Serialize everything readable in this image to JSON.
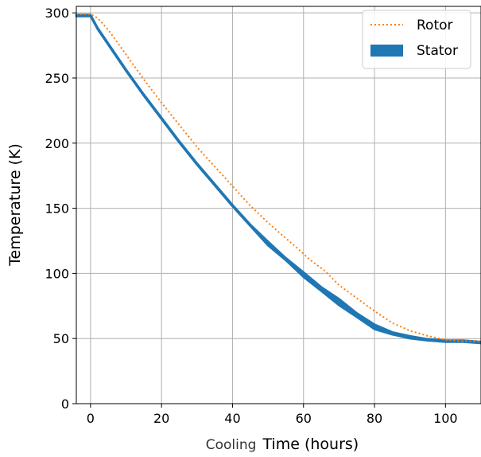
{
  "chart_data": {
    "type": "line",
    "title": "",
    "xlabel_parts": [
      "Cooling",
      "Time (hours)"
    ],
    "ylabel": "Temperature (K)",
    "xlim": [
      -4,
      110
    ],
    "ylim": [
      0,
      305
    ],
    "xticks": [
      0,
      20,
      40,
      60,
      80,
      100
    ],
    "yticks": [
      0,
      50,
      100,
      150,
      200,
      250,
      300
    ],
    "grid": true,
    "legend_position": "top-right",
    "series": [
      {
        "name": "Rotor",
        "style": "dotted",
        "color": "#ff7f0e",
        "x": [
          -4,
          0,
          2,
          5,
          10,
          15,
          20,
          25,
          30,
          35,
          40,
          45,
          50,
          55,
          58,
          62,
          66,
          70,
          75,
          80,
          85,
          90,
          95,
          100,
          105,
          110
        ],
        "y": [
          299,
          299,
          296,
          287,
          268,
          249,
          231,
          214,
          197,
          182,
          167,
          152,
          139,
          127,
          120,
          110,
          102,
          91,
          81,
          71,
          62,
          56,
          52,
          49,
          48,
          48
        ]
      },
      {
        "name": "Stator",
        "style": "band",
        "color": "#1f77b4",
        "x": [
          -4,
          0,
          2,
          5,
          10,
          15,
          20,
          25,
          30,
          35,
          40,
          45,
          50,
          55,
          60,
          65,
          70,
          75,
          80,
          85,
          90,
          95,
          100,
          105,
          110
        ],
        "y": [
          298,
          298,
          288,
          276,
          256,
          237,
          219,
          201,
          184,
          168,
          152,
          137,
          123,
          111,
          99,
          88,
          78,
          68,
          59,
          54,
          51,
          49,
          48,
          48,
          47
        ],
        "band_width": [
          2,
          2,
          2,
          2,
          2,
          2,
          2,
          2,
          2,
          2,
          2,
          2,
          5,
          3,
          6,
          5,
          8,
          5,
          6,
          3,
          3,
          2,
          2,
          2,
          2
        ]
      }
    ]
  }
}
